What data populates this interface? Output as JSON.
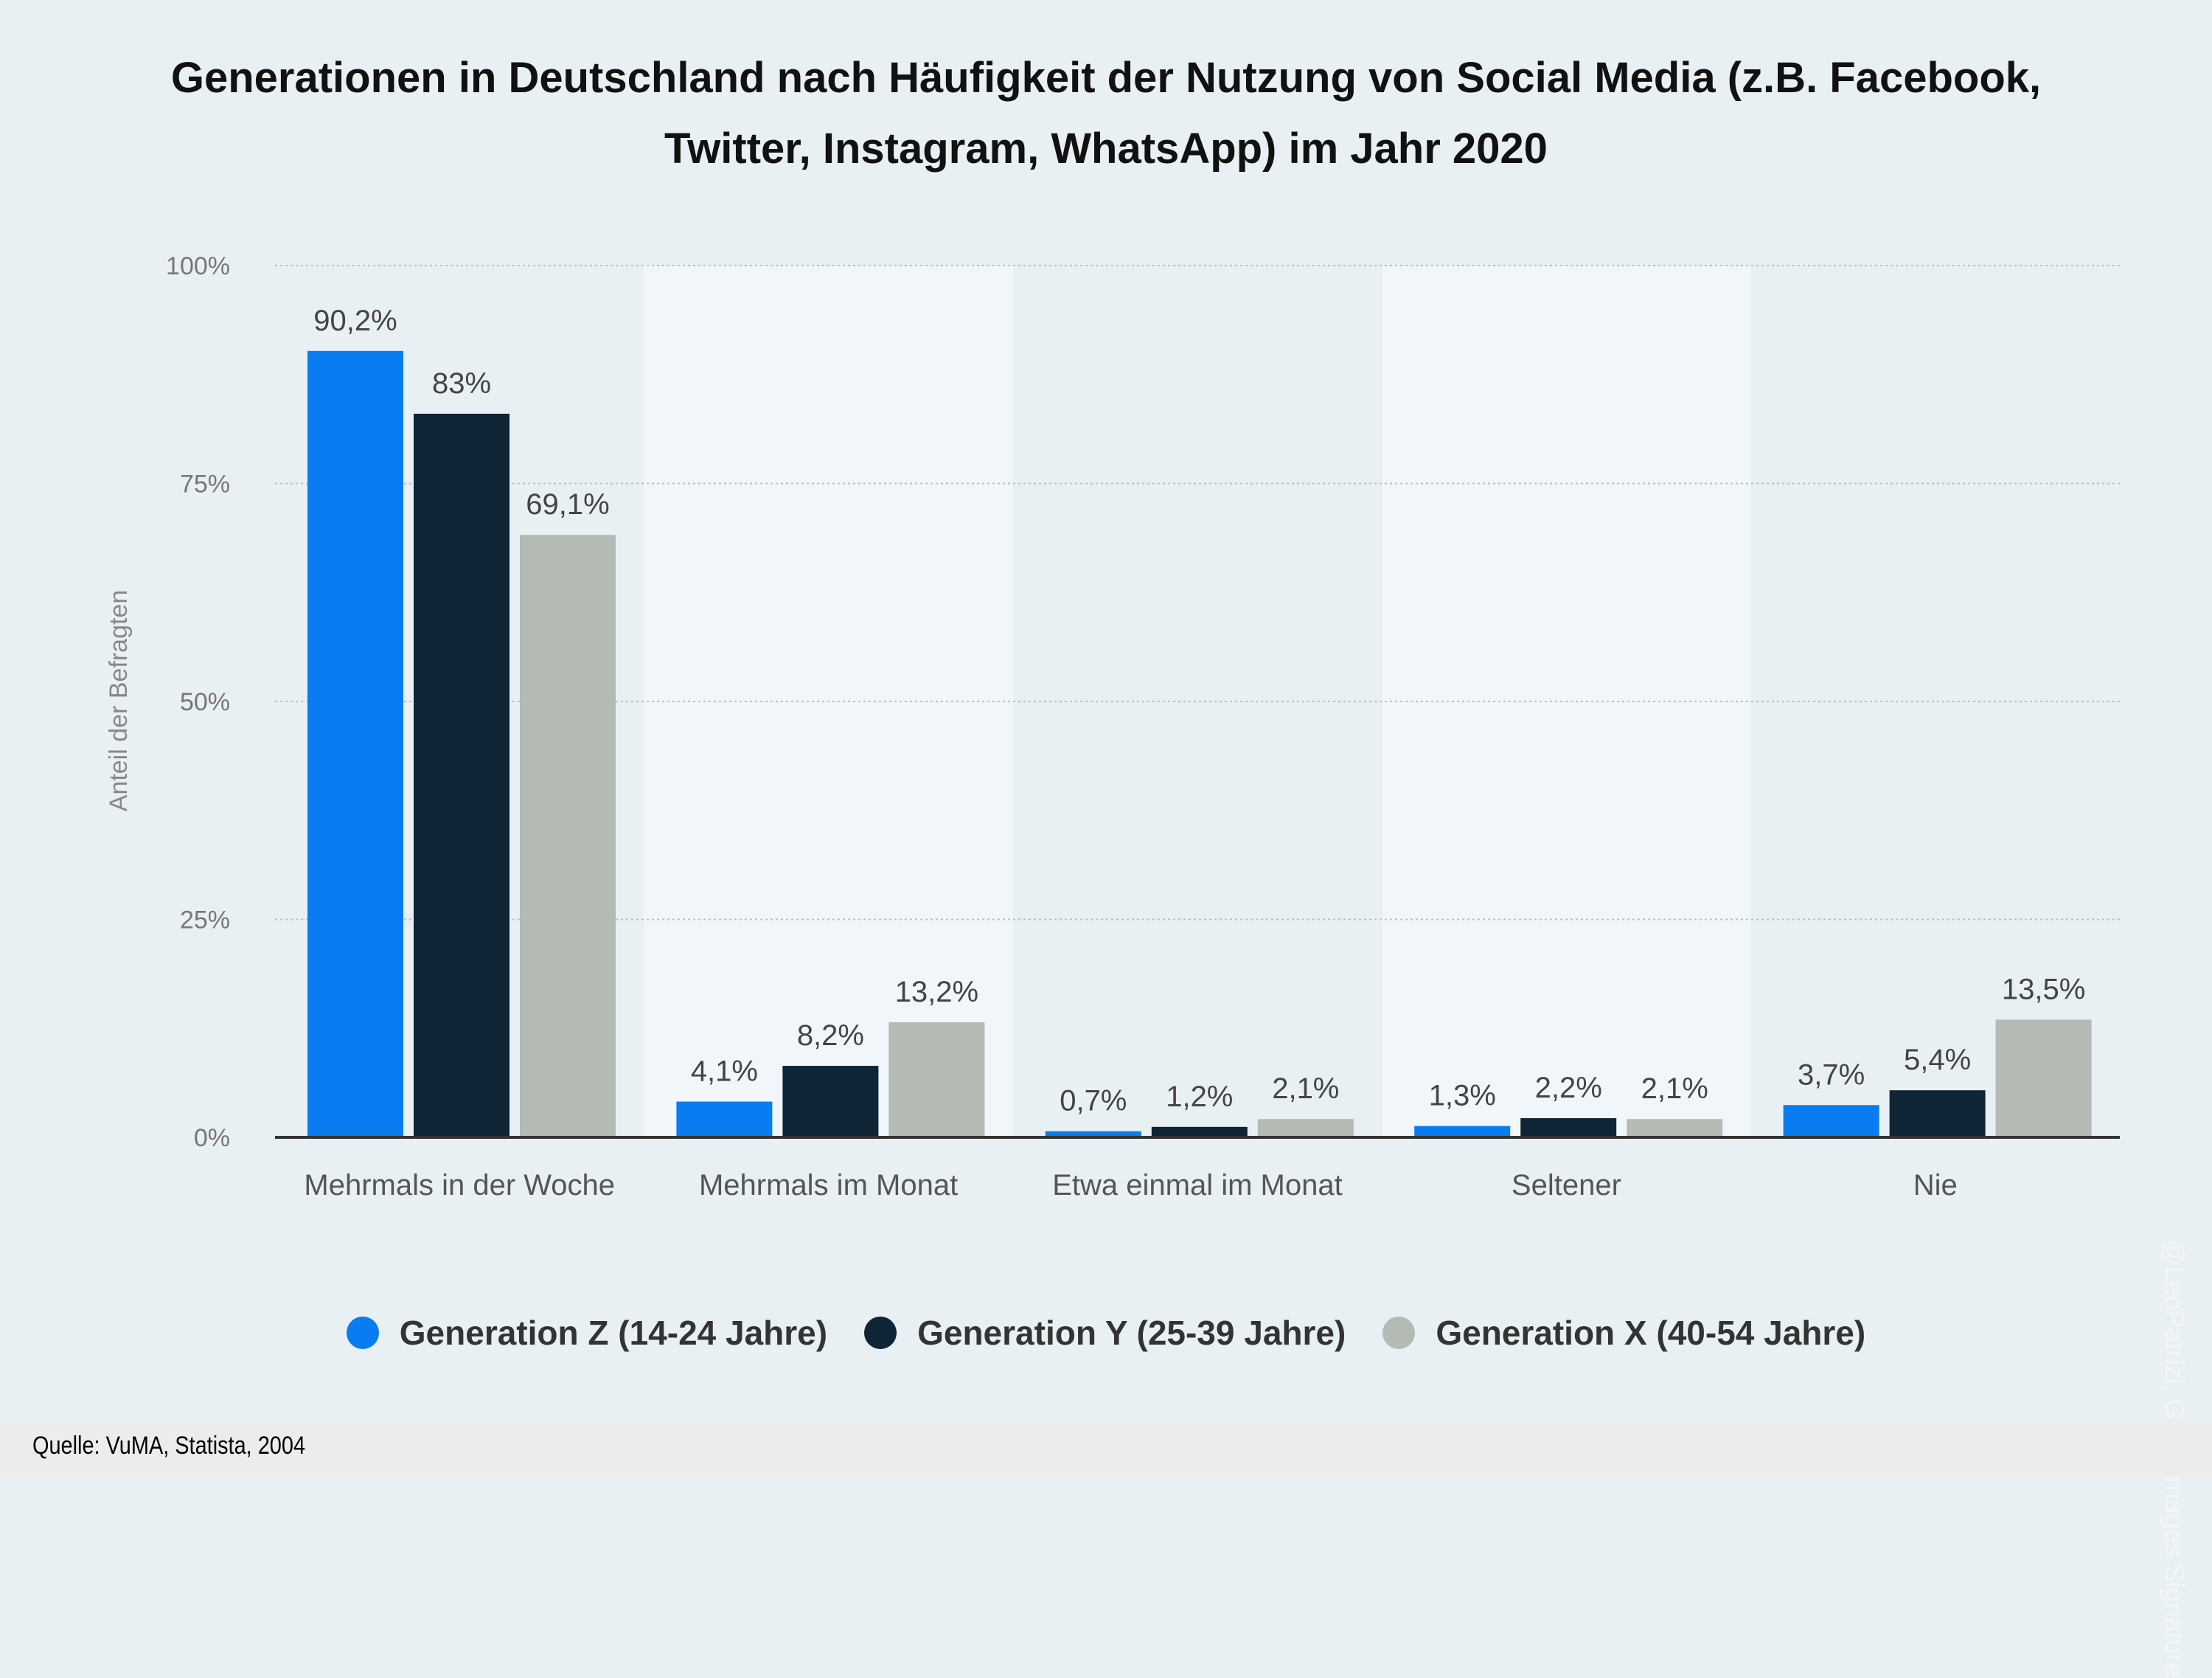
{
  "chart_data": {
    "type": "bar",
    "title": "Generationen in Deutschland nach Häufigkeit der Nutzung von Social Media (z.B. Facebook, Twitter, Instagram, WhatsApp) im Jahr 2020",
    "ylabel": "Anteil der Befragten",
    "xlabel": "",
    "ylim": [
      0,
      100
    ],
    "yticks": [
      "0%",
      "25%",
      "50%",
      "75%",
      "100%"
    ],
    "grid": true,
    "legend_position": "bottom",
    "categories": [
      "Mehrmals in der Woche",
      "Mehrmals im Monat",
      "Etwa einmal im Monat",
      "Seltener",
      "Nie"
    ],
    "series": [
      {
        "name": "Generation Z (14-24 Jahre)",
        "color": "#0a7cf2",
        "values": [
          90.2,
          4.1,
          0.7,
          1.3,
          3.7
        ],
        "labels": [
          "90,2%",
          "4,1%",
          "0,7%",
          "1,3%",
          "3,7%"
        ]
      },
      {
        "name": "Generation Y (25-39 Jahre)",
        "color": "#0f2536",
        "values": [
          83,
          8.2,
          1.2,
          2.2,
          5.4
        ],
        "labels": [
          "83%",
          "8,2%",
          "1,2%",
          "2,2%",
          "5,4%"
        ]
      },
      {
        "name": "Generation X (40-54 Jahre)",
        "color": "#b4bbb5",
        "values": [
          69.1,
          13.2,
          2.1,
          2.1,
          13.5
        ],
        "labels": [
          "69,1%",
          "13,2%",
          "2,1%",
          "2,1%",
          "13,5%"
        ]
      }
    ]
  },
  "source": "Quelle: VuMA, Statista, 2004",
  "watermark": "@LeoPatrizi, Getty Images Signature"
}
